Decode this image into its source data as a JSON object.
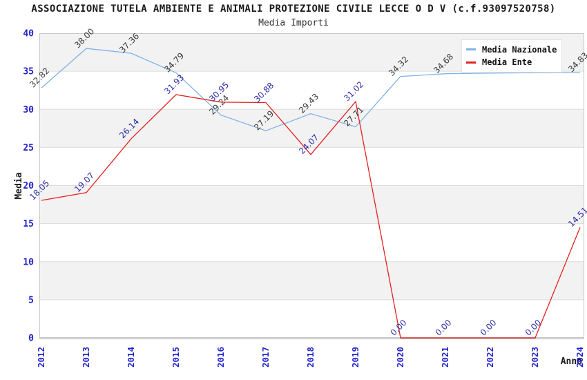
{
  "chart_data": {
    "type": "line",
    "title": "ASSOCIAZIONE TUTELA AMBIENTE E ANIMALI PROTEZIONE CIVILE LECCE O D V (c.f.93097520758)",
    "subtitle": "Media Importi",
    "xlabel": "Anno",
    "ylabel": "Media",
    "x": [
      "2012",
      "2013",
      "2014",
      "2015",
      "2016",
      "2017",
      "2018",
      "2019",
      "2020",
      "2021",
      "2022",
      "2023",
      "2024"
    ],
    "ylim": [
      0,
      40
    ],
    "yticks": [
      "0",
      "5",
      "10",
      "15",
      "20",
      "25",
      "30",
      "35",
      "40"
    ],
    "grid": "horizontal",
    "legend_position": "top-right",
    "series": [
      {
        "name": "Media Nazionale",
        "color": "#7FB2E8",
        "label_color": "#3A3A3A",
        "values": [
          32.82,
          38.0,
          37.36,
          34.79,
          29.24,
          27.19,
          29.43,
          27.71,
          34.32,
          34.68,
          34.75,
          34.8,
          34.83
        ],
        "labels": [
          "32.82",
          "38.00",
          "37.36",
          "34.79",
          "29.24",
          "27.19",
          "29.43",
          "27.71",
          "34.32",
          "34.68",
          "",
          "",
          "34.83"
        ]
      },
      {
        "name": "Media Ente",
        "color": "#E32020",
        "label_color": "#2D2DA6",
        "values": [
          18.05,
          19.07,
          26.14,
          31.93,
          30.95,
          30.88,
          24.07,
          31.02,
          0.0,
          0.0,
          0.0,
          0.0,
          14.51
        ],
        "labels": [
          "18.05",
          "19.07",
          "26.14",
          "31.93",
          "30.95",
          "30.88",
          "24.07",
          "31.02",
          "0.00",
          "0.00",
          "0.00",
          "0.00",
          "14.51"
        ]
      }
    ],
    "colors": {
      "tick_text": "#2222CC",
      "band_fill": "#F2F2F2",
      "grid_line": "#DCDCDC",
      "plot_border": "#C9C9C9",
      "axis_line": "#999999",
      "axis_title_text": "#1A1A1A"
    }
  }
}
